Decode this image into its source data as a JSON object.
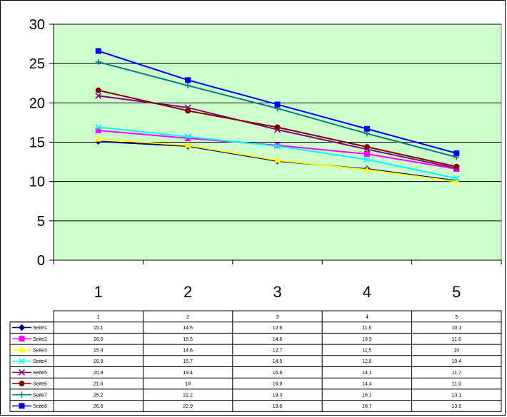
{
  "chart_data": {
    "type": "line",
    "title": "",
    "xlabel": "",
    "ylabel": "",
    "categories": [
      "1",
      "2",
      "3",
      "4",
      "5"
    ],
    "ylim": [
      0,
      30
    ],
    "yticks": [
      "0",
      "5",
      "10",
      "15",
      "20",
      "25",
      "30"
    ],
    "grid": true,
    "plot_background": "#ccffcc",
    "data_table": true,
    "series": [
      {
        "name": "Seite1",
        "values": [
          15.1,
          14.5,
          12.6,
          11.6,
          10.1
        ],
        "labels": [
          "15.1",
          "14.5",
          "12.6",
          "11.6",
          "10.1"
        ],
        "color": "#000080",
        "marker": "diamond"
      },
      {
        "name": "Seite2",
        "values": [
          16.5,
          15.5,
          14.6,
          13.5,
          11.6
        ],
        "labels": [
          "16.5",
          "15.5",
          "14.6",
          "13.5",
          "11.6"
        ],
        "color": "#ff00ff",
        "marker": "square"
      },
      {
        "name": "Seite3",
        "values": [
          15.4,
          14.6,
          12.7,
          11.5,
          10
        ],
        "labels": [
          "15.4",
          "14.6",
          "12.7",
          "11.5",
          "10"
        ],
        "color": "#ffff00",
        "marker": "triangle"
      },
      {
        "name": "Seite4",
        "values": [
          16.9,
          15.7,
          14.5,
          12.8,
          10.4
        ],
        "labels": [
          "16.9",
          "15.7",
          "14.5",
          "12.8",
          "10.4"
        ],
        "color": "#00ffff",
        "marker": "x"
      },
      {
        "name": "Seite5",
        "values": [
          20.9,
          19.4,
          16.6,
          14.1,
          11.7
        ],
        "labels": [
          "20.9",
          "19.4",
          "16.6",
          "14.1",
          "11.7"
        ],
        "color": "#800080",
        "marker": "x"
      },
      {
        "name": "Seite6",
        "values": [
          21.6,
          19,
          16.9,
          14.4,
          11.9
        ],
        "labels": [
          "21.6",
          "19",
          "16.9",
          "14.4",
          "11.9"
        ],
        "color": "#800000",
        "marker": "circle"
      },
      {
        "name": "Seite7",
        "values": [
          25.2,
          22.2,
          19.3,
          16.1,
          13.1
        ],
        "labels": [
          "25.2",
          "22.2",
          "19.3",
          "16.1",
          "13.1"
        ],
        "color": "#008080",
        "marker": "plus"
      },
      {
        "name": "Seite8",
        "values": [
          26.6,
          22.9,
          19.8,
          16.7,
          13.6
        ],
        "labels": [
          "26.6",
          "22.9",
          "19.8",
          "16.7",
          "13.6"
        ],
        "color": "#0000ff",
        "marker": "square"
      }
    ]
  }
}
